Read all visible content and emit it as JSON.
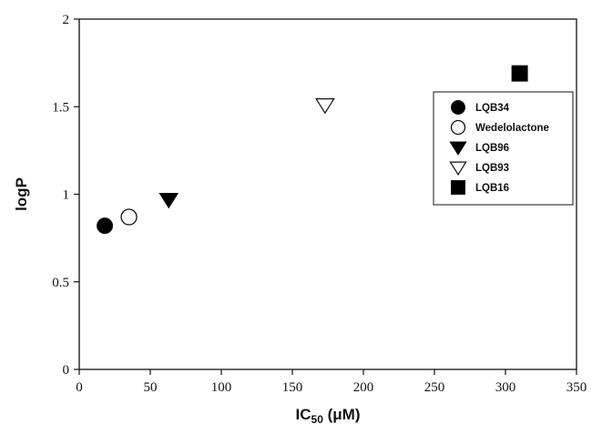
{
  "chart_data": {
    "type": "scatter",
    "title": "",
    "xlabel": {
      "main": "IC",
      "sub": "50",
      "unit": " (μM)"
    },
    "ylabel": "logP",
    "xlim": [
      0,
      350
    ],
    "ylim": [
      0,
      2
    ],
    "xticks": [
      0,
      50,
      100,
      150,
      200,
      250,
      300,
      350
    ],
    "yticks": [
      0,
      0.5,
      1,
      1.5,
      2
    ],
    "xtick_labels": [
      "0",
      "50",
      "100",
      "150",
      "200",
      "250",
      "300",
      "350"
    ],
    "ytick_labels": [
      "0",
      "0.5",
      "1",
      "1.5",
      "2"
    ],
    "grid": false,
    "legend_position": "right",
    "series": [
      {
        "name": "LQB34",
        "marker": "circle-filled",
        "x": [
          18
        ],
        "y": [
          0.82
        ]
      },
      {
        "name": "Wedelolactone",
        "marker": "circle-open",
        "x": [
          35
        ],
        "y": [
          0.87
        ]
      },
      {
        "name": "LQB96",
        "marker": "triangle-down-filled",
        "x": [
          63
        ],
        "y": [
          0.97
        ]
      },
      {
        "name": "LQB93",
        "marker": "triangle-down-open",
        "x": [
          173
        ],
        "y": [
          1.51
        ]
      },
      {
        "name": "LQB16",
        "marker": "square-filled",
        "x": [
          310
        ],
        "y": [
          1.69
        ]
      }
    ]
  }
}
